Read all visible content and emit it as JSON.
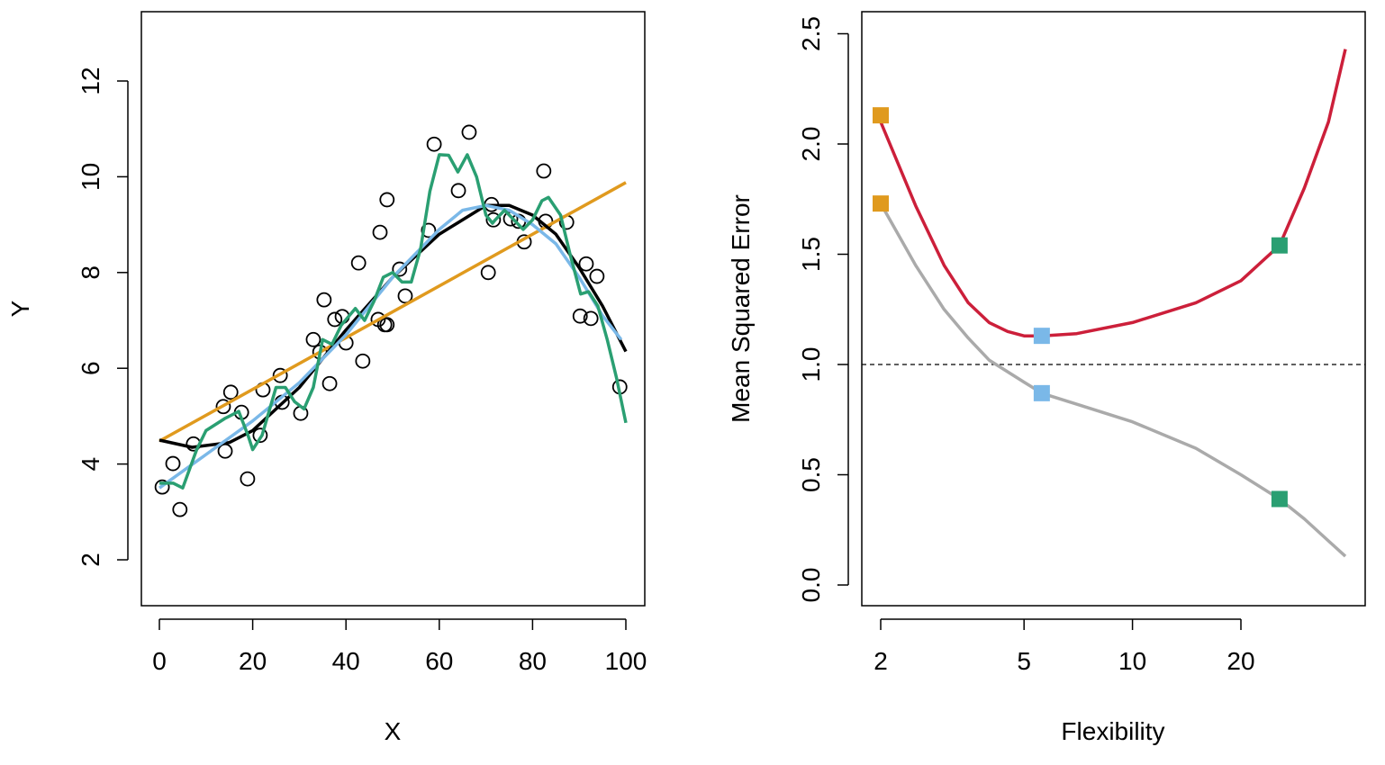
{
  "chart_data": [
    {
      "type": "scatter",
      "xlabel": "X",
      "ylabel": "Y",
      "xlim": [
        0,
        100
      ],
      "ylim": [
        1,
        13
      ],
      "xticks": [
        0,
        20,
        40,
        60,
        80,
        100
      ],
      "yticks": [
        2,
        4,
        6,
        8,
        10,
        12
      ],
      "grid": false,
      "points": {
        "x": [
          0.6,
          2.9,
          4.4,
          7.3,
          14.1,
          13.7,
          15.3,
          17.6,
          18.9,
          21.6,
          22.2,
          25.9,
          26.3,
          30.3,
          33.0,
          34.4,
          35.3,
          36.5,
          37.6,
          39.2,
          40.0,
          42.7,
          43.6,
          46.9,
          47.3,
          48.3,
          48.8,
          48.8,
          51.5,
          52.7,
          57.7,
          58.9,
          64.1,
          66.4,
          70.5,
          71.2,
          71.6,
          75.3,
          77.0,
          78.2,
          82.4,
          82.8,
          87.3,
          90.2,
          91.5,
          92.5,
          93.8,
          98.7
        ],
        "y": [
          3.52,
          4.01,
          3.05,
          4.42,
          4.27,
          5.2,
          5.5,
          5.08,
          3.69,
          4.6,
          5.55,
          5.85,
          5.29,
          5.06,
          6.6,
          6.34,
          7.43,
          5.68,
          7.02,
          7.08,
          6.53,
          8.2,
          6.15,
          7.02,
          8.84,
          6.91,
          6.91,
          9.52,
          8.07,
          7.51,
          8.88,
          10.68,
          9.71,
          10.93,
          8.0,
          9.42,
          9.1,
          9.12,
          9.07,
          8.64,
          10.12,
          9.07,
          9.05,
          7.09,
          8.18,
          7.04,
          7.92,
          5.61
        ]
      },
      "series": [
        {
          "color": "#000000",
          "x": [
            0,
            7,
            15,
            20,
            30,
            40,
            50,
            60,
            70,
            75,
            80,
            85,
            90,
            95,
            100
          ],
          "y": [
            4.5,
            4.35,
            4.45,
            4.7,
            5.6,
            6.8,
            7.9,
            8.8,
            9.4,
            9.4,
            9.2,
            8.8,
            8.1,
            7.3,
            6.35
          ]
        },
        {
          "color": "#E09A1E",
          "x": [
            0,
            100
          ],
          "y": [
            4.48,
            9.88
          ]
        },
        {
          "color": "#7AB8E8",
          "x": [
            0,
            10,
            20,
            30,
            40,
            50,
            60,
            65,
            70,
            75,
            80,
            85,
            90,
            95,
            99
          ],
          "y": [
            3.5,
            4.2,
            4.9,
            5.7,
            6.7,
            7.9,
            8.9,
            9.3,
            9.4,
            9.3,
            9.0,
            8.6,
            7.9,
            7.1,
            6.6
          ]
        },
        {
          "color": "#2A9F72",
          "x": [
            0,
            3,
            5,
            8,
            10,
            14,
            17,
            19,
            20,
            22,
            25,
            27,
            29,
            31,
            33,
            35,
            37,
            39,
            42,
            44,
            46,
            48,
            50,
            52,
            54,
            56,
            58,
            60,
            62,
            64,
            66,
            68,
            70,
            71.4,
            72,
            74,
            76,
            78,
            80,
            82,
            83.4,
            86,
            88,
            90.3,
            92,
            94,
            96,
            98,
            100
          ],
          "y": [
            3.6,
            3.6,
            3.5,
            4.3,
            4.7,
            4.95,
            5.1,
            4.6,
            4.3,
            4.6,
            5.6,
            5.6,
            5.3,
            5.15,
            5.6,
            6.6,
            6.5,
            6.9,
            7.25,
            7.0,
            7.4,
            7.9,
            8.0,
            7.8,
            7.8,
            8.5,
            9.7,
            10.46,
            10.45,
            10.1,
            10.46,
            10.0,
            9.2,
            9.03,
            9.1,
            9.3,
            9.1,
            8.9,
            9.1,
            9.5,
            9.57,
            9.2,
            8.4,
            7.55,
            7.6,
            7.3,
            6.6,
            5.8,
            4.86
          ]
        }
      ]
    },
    {
      "type": "line",
      "xlabel": "Flexibility",
      "ylabel": "Mean Squared Error",
      "xscale": "log",
      "xlim": [
        1.85,
        42
      ],
      "ylim": [
        -0.05,
        2.6
      ],
      "xticks": [
        2,
        5,
        10,
        20
      ],
      "yticks": [
        "0.0",
        "0.5",
        "1.0",
        "1.5",
        "2.0",
        "2.5"
      ],
      "grid": false,
      "reference_line": {
        "y": 1.0,
        "style": "dashed"
      },
      "series": [
        {
          "color": "#CC1F3A",
          "x": [
            2,
            2.5,
            3,
            3.5,
            4,
            4.5,
            5,
            5.6,
            7,
            10,
            15,
            20,
            25.6,
            30,
            35,
            39
          ],
          "y": [
            2.1,
            1.72,
            1.45,
            1.28,
            1.19,
            1.15,
            1.13,
            1.13,
            1.14,
            1.19,
            1.28,
            1.38,
            1.54,
            1.8,
            2.1,
            2.43
          ]
        },
        {
          "color": "#AAAAAA",
          "x": [
            2,
            2.5,
            3,
            3.5,
            4,
            5,
            5.6,
            7,
            10,
            15,
            20,
            25.6,
            30,
            35,
            39
          ],
          "y": [
            1.73,
            1.45,
            1.25,
            1.12,
            1.02,
            0.92,
            0.87,
            0.82,
            0.74,
            0.62,
            0.5,
            0.39,
            0.3,
            0.2,
            0.13
          ]
        }
      ],
      "markers": [
        {
          "x": 2,
          "y": 2.13,
          "color": "#E09A1E"
        },
        {
          "x": 2,
          "y": 1.73,
          "color": "#E09A1E"
        },
        {
          "x": 5.6,
          "y": 1.13,
          "color": "#7AB8E8"
        },
        {
          "x": 5.6,
          "y": 0.87,
          "color": "#7AB8E8"
        },
        {
          "x": 25.6,
          "y": 1.54,
          "color": "#2A9F72"
        },
        {
          "x": 25.6,
          "y": 0.39,
          "color": "#2A9F72"
        }
      ]
    }
  ]
}
